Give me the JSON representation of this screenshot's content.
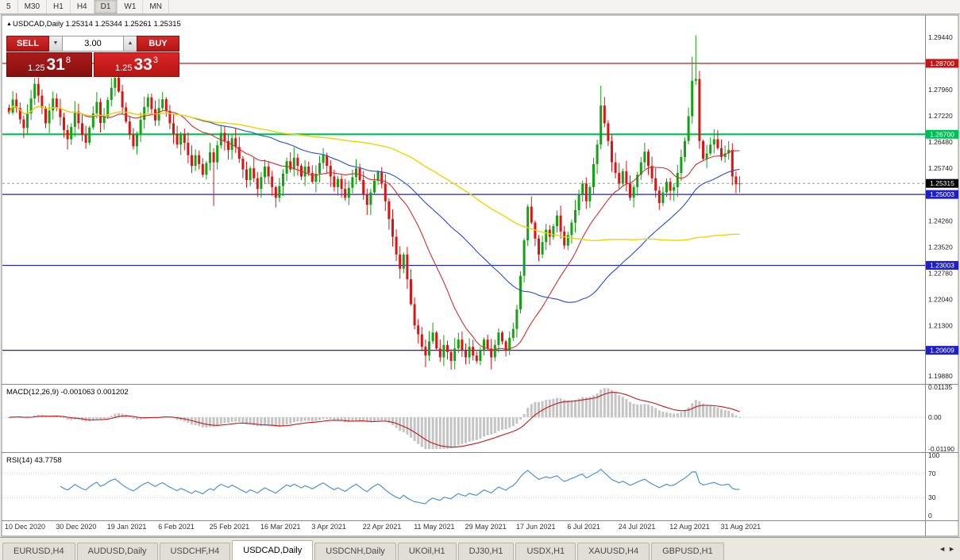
{
  "timeframe_bar": {
    "items": [
      "5",
      "M30",
      "H1",
      "H4",
      "D1",
      "W1",
      "MN"
    ],
    "active": "D1"
  },
  "chart_header": {
    "collapse_icon": "▲",
    "title": "USDCAD,Daily",
    "open": "1.25314",
    "high": "1.25344",
    "low": "1.25261",
    "close": "1.25315"
  },
  "trade_panel": {
    "sell_label": "SELL",
    "buy_label": "BUY",
    "volume": "3.00",
    "volume_down_icon": "▼",
    "volume_up_icon": "▲",
    "sell_price": {
      "prefix": "1.25",
      "big": "31",
      "sup": "8"
    },
    "buy_price": {
      "prefix": "1.25",
      "big": "33",
      "sup": "3"
    }
  },
  "tab_bar": {
    "active_index": 3,
    "scroll_left_icon": "◄",
    "scroll_right_icon": "►",
    "items": [
      "EURUSD,H4",
      "AUDUSD,Daily",
      "USDCHF,H4",
      "USDCAD,Daily",
      "USDCNH,Daily",
      "UKOil,H1",
      "DJ30,H1",
      "USDX,H1",
      "XAUUSD,H4",
      "GBPUSD,H1"
    ]
  },
  "chart_data": {
    "type": "candlestick",
    "symbol": "USDCAD",
    "timeframe": "Daily",
    "up_color": "#12A212",
    "down_color": "#DE1414",
    "ylim": [
      1.1975,
      1.2995
    ],
    "y_ticks": [
      "1.29440",
      "1.27960",
      "1.27220",
      "1.26480",
      "1.25740",
      "1.24260",
      "1.23520",
      "1.22780",
      "1.22040",
      "1.21300",
      "1.19880"
    ],
    "x_label_step": 14,
    "x_labels": [
      "10 Dec 2020",
      "30 Dec 2020",
      "19 Jan 2021",
      "6 Feb 2021",
      "25 Feb 2021",
      "16 Mar 2021",
      "3 Apr 2021",
      "22 Apr 2021",
      "11 May 2021",
      "29 May 2021",
      "17 Jun 2021",
      "6 Jul 2021",
      "24 Jul 2021",
      "12 Aug 2021",
      "31 Aug 2021"
    ],
    "first_open": 1.2745,
    "closes": [
      1.2731,
      1.2768,
      1.2744,
      1.2712,
      1.2688,
      1.2729,
      1.2771,
      1.2812,
      1.2779,
      1.2745,
      1.2701,
      1.2737,
      1.2771,
      1.2744,
      1.2718,
      1.2682,
      1.2656,
      1.2691,
      1.2734,
      1.2701,
      1.2668,
      1.2646,
      1.2689,
      1.2729,
      1.2761,
      1.2702,
      1.2721,
      1.2767,
      1.2801,
      1.2829,
      1.2791,
      1.2746,
      1.2706,
      1.2669,
      1.2636,
      1.2671,
      1.2711,
      1.2747,
      1.2774,
      1.2741,
      1.2709,
      1.2744,
      1.2769,
      1.2736,
      1.2701,
      1.2671,
      1.2641,
      1.2671,
      1.2646,
      1.2611,
      1.2581,
      1.2611,
      1.2586,
      1.2556,
      1.2589,
      1.2619,
      1.2591,
      1.2639,
      1.2674,
      1.2651,
      1.2626,
      1.2659,
      1.2634,
      1.2601,
      1.2571,
      1.2541,
      1.2574,
      1.2546,
      1.2516,
      1.2549,
      1.2579,
      1.2551,
      1.2521,
      1.2491,
      1.2524,
      1.2559,
      1.2594,
      1.2571,
      1.2604,
      1.2581,
      1.2551,
      1.2579,
      1.2561,
      1.2536,
      1.2559,
      1.2589,
      1.2611,
      1.2581,
      1.2551,
      1.2521,
      1.2544,
      1.2516,
      1.2491,
      1.2519,
      1.2549,
      1.2574,
      1.2541,
      1.2501,
      1.2471,
      1.2506,
      1.2539,
      1.2564,
      1.2531,
      1.2481,
      1.2431,
      1.2381,
      1.2331,
      1.2291,
      1.2331,
      1.2261,
      1.2191,
      1.2131,
      1.2106,
      1.2071,
      1.2046,
      1.2086,
      1.2111,
      1.2066,
      1.2041,
      1.2076,
      1.2056,
      1.2031,
      1.2066,
      1.2091,
      1.2061,
      1.2041,
      1.2071,
      1.2046,
      1.2031,
      1.2061,
      1.2091,
      1.2066,
      1.2041,
      1.2076,
      1.2111,
      1.2086,
      1.2061,
      1.2096,
      1.2121,
      1.2176,
      1.2271,
      1.2371,
      1.2466,
      1.2421,
      1.2376,
      1.2331,
      1.2366,
      1.2401,
      1.2381,
      1.2411,
      1.2441,
      1.2396,
      1.2356,
      1.2386,
      1.2421,
      1.2456,
      1.2501,
      1.2531,
      1.2481,
      1.2521,
      1.2586,
      1.2641,
      1.2751,
      1.2701,
      1.2651,
      1.2591,
      1.2561,
      1.2531,
      1.2566,
      1.2531,
      1.2491,
      1.2521,
      1.2556,
      1.2591,
      1.2621,
      1.2581,
      1.2546,
      1.2511,
      1.2476,
      1.2506,
      1.2536,
      1.2511,
      1.2521,
      1.2561,
      1.2606,
      1.2651,
      1.2721,
      1.2821,
      1.2826,
      1.2651,
      1.2601,
      1.2616,
      1.2641,
      1.2656,
      1.2631,
      1.2606,
      1.2616,
      1.2626,
      1.2551,
      1.2529,
      1.25315
    ],
    "wick_overrides": [
      {
        "i": 29,
        "high": 1.2843
      },
      {
        "i": 56,
        "low": 1.2468
      },
      {
        "i": 114,
        "low": 1.2013
      },
      {
        "i": 121,
        "low": 1.2006
      },
      {
        "i": 132,
        "low": 1.2007
      },
      {
        "i": 162,
        "high": 1.2807
      },
      {
        "i": 187,
        "high": 1.2889
      },
      {
        "i": 188,
        "high": 1.2949
      }
    ],
    "moving_averages": [
      {
        "name": "SMA20",
        "period": 20,
        "color": "#D23030",
        "width": 1.1
      },
      {
        "name": "SMA50",
        "period": 50,
        "color": "#2850C8",
        "width": 1.1
      },
      {
        "name": "SMA100",
        "period": 100,
        "color": "#EFD500",
        "width": 1.4
      }
    ],
    "hlines": [
      {
        "price": 1.287,
        "label": "1.28700",
        "color": "#C41818",
        "width": 1.2
      },
      {
        "price": 1.267,
        "label": "1.26700",
        "color": "#00BE55",
        "width": 2.2
      },
      {
        "price": 1.25003,
        "label": "1.25003",
        "color": "#1F1FC8",
        "width": 1.2
      },
      {
        "price": 1.23003,
        "label": "1.23003",
        "color": "#1F1FC8",
        "width": 1.2
      },
      {
        "price": 1.20609,
        "label": "1.20609",
        "color": "#1F1FC8",
        "width": 1.2
      }
    ],
    "current_price": {
      "value": 1.25315,
      "label": "1.25315",
      "badge_color": "#000000"
    },
    "macd": {
      "label": "MACD(12,26,9) -0.001063 0.001202",
      "fast": 12,
      "slow": 26,
      "signal": 9,
      "range": [
        -0.0119,
        0.01135
      ],
      "y_ticks": [
        "0.01135",
        "0.00",
        "-0.01190"
      ],
      "histogram_color": "#C4C4C4",
      "signal_color": "#C41818"
    },
    "rsi": {
      "label": "RSI(14) 43.7758",
      "period": 14,
      "last_value": 43.7758,
      "levels": [
        70,
        30
      ],
      "y_ticks": [
        "100",
        "70",
        "30",
        "0"
      ],
      "line_color": "#4F94CD"
    }
  }
}
